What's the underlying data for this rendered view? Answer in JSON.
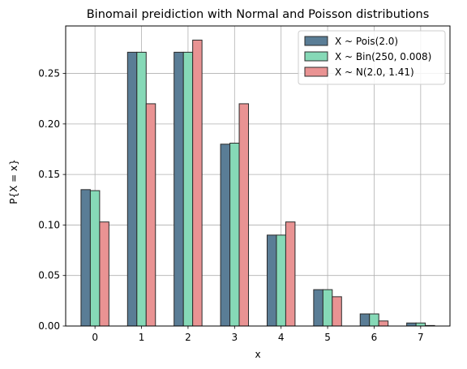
{
  "chart_data": {
    "type": "bar",
    "title": "Binomail preidiction with Normal and Poisson distributions",
    "xlabel": "x",
    "ylabel": "P{X = x}",
    "categories": [
      "0",
      "1",
      "2",
      "3",
      "4",
      "5",
      "6",
      "7"
    ],
    "x": [
      0,
      1,
      2,
      3,
      4,
      5,
      6,
      7
    ],
    "ylim": [
      0,
      0.297
    ],
    "yticks": [
      "0.00",
      "0.05",
      "0.10",
      "0.15",
      "0.20",
      "0.25"
    ],
    "ytick_values": [
      0,
      0.05,
      0.1,
      0.15,
      0.2,
      0.25
    ],
    "grid": true,
    "legend_position": "top-right",
    "series": [
      {
        "name": "X ~ Pois(2.0)",
        "color": "#5a7d96",
        "values": [
          0.135,
          0.271,
          0.271,
          0.18,
          0.09,
          0.036,
          0.012,
          0.003
        ]
      },
      {
        "name": "X ~ Bin(250, 0.008)",
        "color": "#86d9b7",
        "values": [
          0.134,
          0.271,
          0.271,
          0.181,
          0.09,
          0.036,
          0.012,
          0.003
        ]
      },
      {
        "name": "X ~ N(2.0, 1.41)",
        "color": "#e99393",
        "values": [
          0.103,
          0.22,
          0.283,
          0.22,
          0.103,
          0.029,
          0.005,
          0.0005
        ]
      }
    ]
  }
}
